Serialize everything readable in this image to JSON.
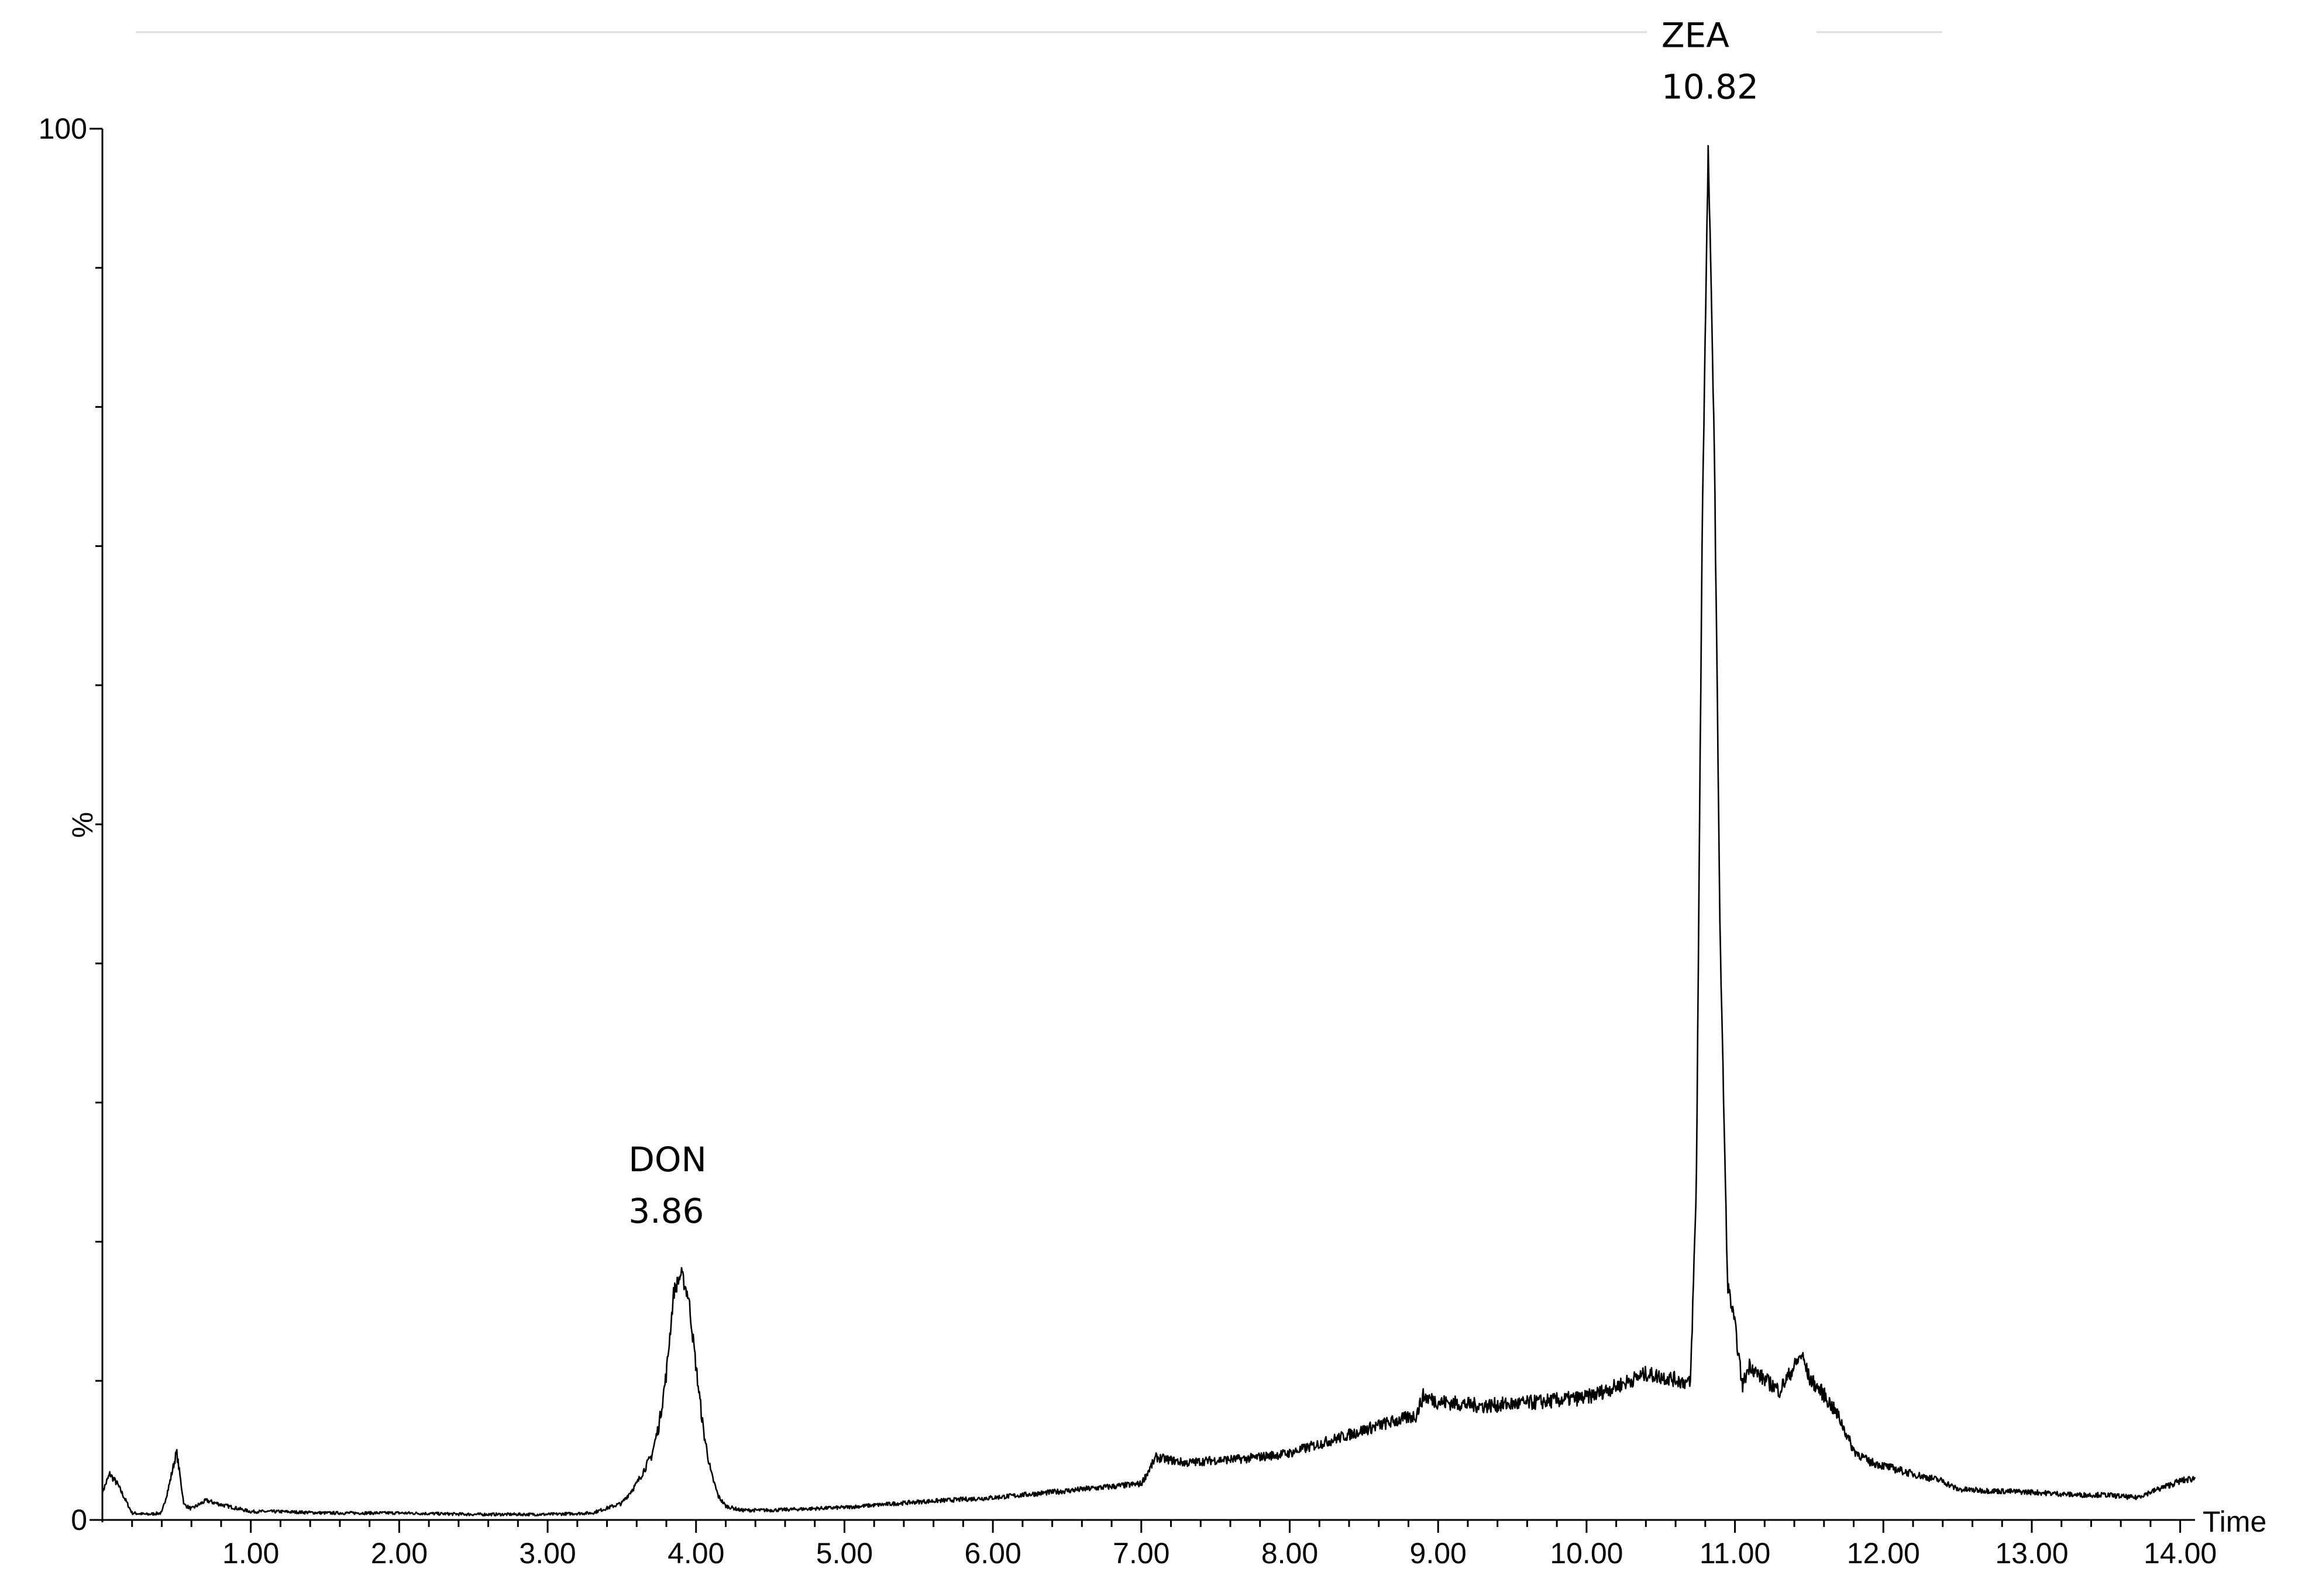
{
  "chart_data": {
    "type": "line",
    "title": "",
    "xlabel": "Time",
    "ylabel": "%",
    "xlim": [
      0,
      14.1
    ],
    "ylim": [
      0,
      100
    ],
    "x_ticks": [
      1.0,
      2.0,
      3.0,
      4.0,
      5.0,
      6.0,
      7.0,
      8.0,
      9.0,
      10.0,
      11.0,
      12.0,
      13.0,
      14.0
    ],
    "x_tick_labels": [
      "1.00",
      "2.00",
      "3.00",
      "4.00",
      "5.00",
      "6.00",
      "7.00",
      "8.00",
      "9.00",
      "10.00",
      "11.00",
      "12.00",
      "13.00",
      "14.00"
    ],
    "y_tick_labels": [
      {
        "value": 0,
        "label": "0"
      },
      {
        "value": 100,
        "label": "100"
      }
    ],
    "grid": false,
    "legend": "none",
    "annotations": [
      {
        "name": "DON",
        "x": 3.86,
        "y": 17.7,
        "compound": "DON",
        "time_label": "3.86"
      },
      {
        "name": "ZEA",
        "x": 10.82,
        "y": 98.5,
        "compound": "ZEA",
        "time_label": "10.82"
      }
    ],
    "series": [
      {
        "x": [
          0.0,
          0.05,
          0.1,
          0.2,
          0.3,
          0.4,
          0.45,
          0.5,
          0.55,
          0.6,
          0.7,
          0.8,
          1.0,
          1.2,
          1.5,
          2.0,
          2.5,
          3.0,
          3.3,
          3.5,
          3.6,
          3.7,
          3.75,
          3.8,
          3.85,
          3.9,
          3.95,
          4.0,
          4.05,
          4.1,
          4.15,
          4.2,
          4.3,
          4.5,
          5.0,
          5.5,
          6.0,
          6.5,
          7.0,
          7.1,
          7.15,
          7.3,
          7.5,
          7.7,
          8.0,
          8.3,
          8.6,
          8.85,
          8.9,
          9.0,
          9.3,
          9.6,
          10.0,
          10.2,
          10.4,
          10.5,
          10.6,
          10.7,
          10.74,
          10.78,
          10.82,
          10.86,
          10.9,
          10.95,
          11.0,
          11.05,
          11.1,
          11.15,
          11.3,
          11.45,
          11.5,
          11.6,
          11.7,
          11.8,
          11.9,
          12.2,
          12.4,
          12.5,
          12.7,
          13.0,
          13.3,
          13.5,
          13.7,
          14.0,
          14.1
        ],
        "y": [
          2.0,
          3.3,
          2.6,
          0.5,
          0.4,
          0.5,
          2.5,
          4.9,
          1.1,
          0.8,
          1.4,
          1.1,
          0.6,
          0.6,
          0.5,
          0.5,
          0.4,
          0.4,
          0.5,
          1.2,
          2.6,
          4.6,
          6.8,
          10.5,
          16.4,
          17.7,
          16.0,
          11.0,
          6.4,
          3.4,
          1.7,
          1.0,
          0.7,
          0.7,
          0.9,
          1.3,
          1.6,
          2.1,
          2.6,
          4.5,
          4.4,
          4.1,
          4.3,
          4.4,
          4.8,
          5.8,
          6.8,
          7.5,
          8.9,
          8.5,
          8.2,
          8.4,
          8.8,
          9.6,
          10.5,
          10.3,
          10.1,
          9.8,
          24.0,
          72.0,
          98.5,
          78.0,
          42.0,
          17.0,
          14.0,
          9.6,
          11.2,
          10.5,
          9.3,
          11.9,
          10.2,
          9.0,
          7.4,
          5.0,
          4.2,
          3.3,
          2.8,
          2.2,
          2.1,
          2.0,
          1.8,
          1.8,
          1.6,
          2.8,
          3.0
        ]
      }
    ]
  }
}
